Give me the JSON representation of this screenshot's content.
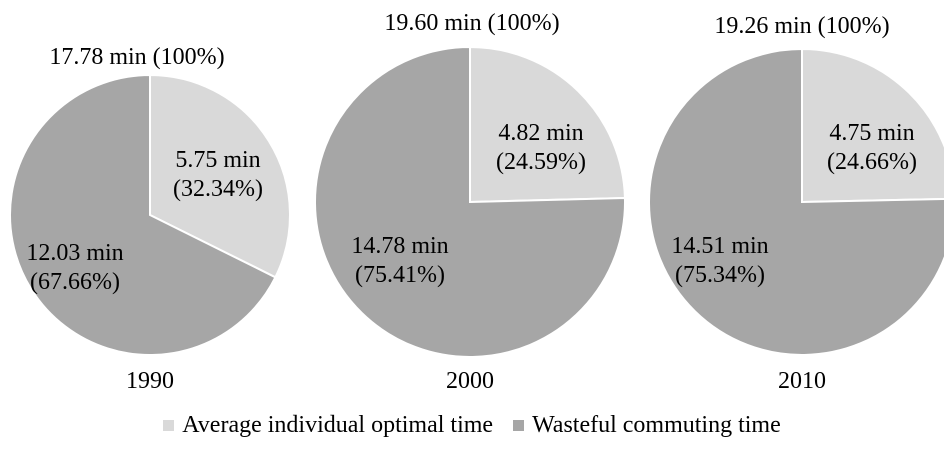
{
  "chart_data": {
    "type": "pie",
    "legend_position": "bottom",
    "series_names": [
      "Average individual optimal time",
      "Wasteful commuting time"
    ],
    "colors": {
      "optimal": "#d9d9d9",
      "wasteful": "#a6a6a6",
      "border": "#ffffff"
    },
    "pies": [
      {
        "year": "1990",
        "total_label": "17.78 min (100%)",
        "total": 17.78,
        "slices": [
          {
            "series": "Average individual optimal time",
            "value": 5.75,
            "percent": 32.34,
            "label_line1": "5.75 min",
            "label_line2": "(32.34%)"
          },
          {
            "series": "Wasteful commuting time",
            "value": 12.03,
            "percent": 67.66,
            "label_line1": "12.03 min",
            "label_line2": "(67.66%)"
          }
        ]
      },
      {
        "year": "2000",
        "total_label": "19.60 min (100%)",
        "total": 19.6,
        "slices": [
          {
            "series": "Average individual optimal time",
            "value": 4.82,
            "percent": 24.59,
            "label_line1": "4.82 min",
            "label_line2": "(24.59%)"
          },
          {
            "series": "Wasteful commuting time",
            "value": 14.78,
            "percent": 75.41,
            "label_line1": "14.78 min",
            "label_line2": "(75.41%)"
          }
        ]
      },
      {
        "year": "2010",
        "total_label": "19.26 min (100%)",
        "total": 19.26,
        "slices": [
          {
            "series": "Average individual optimal time",
            "value": 4.75,
            "percent": 24.66,
            "label_line1": "4.75 min",
            "label_line2": "(24.66%)"
          },
          {
            "series": "Wasteful commuting time",
            "value": 14.51,
            "percent": 75.34,
            "label_line1": "14.51 min",
            "label_line2": "(75.34%)"
          }
        ]
      }
    ]
  },
  "legend": {
    "optimal_label": "Average individual optimal time",
    "wasteful_label": "Wasteful commuting time"
  }
}
